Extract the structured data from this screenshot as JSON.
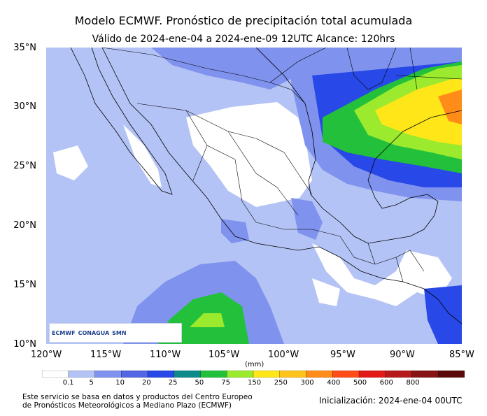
{
  "title": "Modelo ECMWF. Pronóstico de precipitación total acumulada",
  "subtitle": "Válido de 2024-ene-04 a 2024-ene-09 12UTC   Alcance: 120hrs",
  "lat_labels": [
    "35°N",
    "30°N",
    "25°N",
    "20°N",
    "15°N",
    "10°N"
  ],
  "lon_labels": [
    "120°W",
    "115°W",
    "110°W",
    "105°W",
    "100°W",
    "95°W",
    "90°W",
    "85°W"
  ],
  "colorbar": {
    "unit": "(mm)",
    "labels": [
      "0.1",
      "5",
      "10",
      "20",
      "25",
      "50",
      "75",
      "150",
      "250",
      "300",
      "400",
      "500",
      "600",
      "800"
    ],
    "colors": [
      "#ffffff",
      "#b4c3f5",
      "#7f92ee",
      "#5366e3",
      "#2849e7",
      "#0f8a8a",
      "#23c13b",
      "#9bea2e",
      "#ffe619",
      "#ffc319",
      "#ff8c19",
      "#ff4d19",
      "#e31919",
      "#b51919",
      "#861414",
      "#5a0a0a"
    ]
  },
  "logos": {
    "ecmwf": "ECMWF",
    "conagua": "CONAGUA",
    "smn": "SMN"
  },
  "footer_left_line1": "Este servicio se basa en datos y productos del Centro Europeo",
  "footer_left_line2": "de Pronósticos Meteorológicos a Mediano Plazo (ECMWF)",
  "footer_right": "Inicialización: 2024-ene-04 00UTC"
}
